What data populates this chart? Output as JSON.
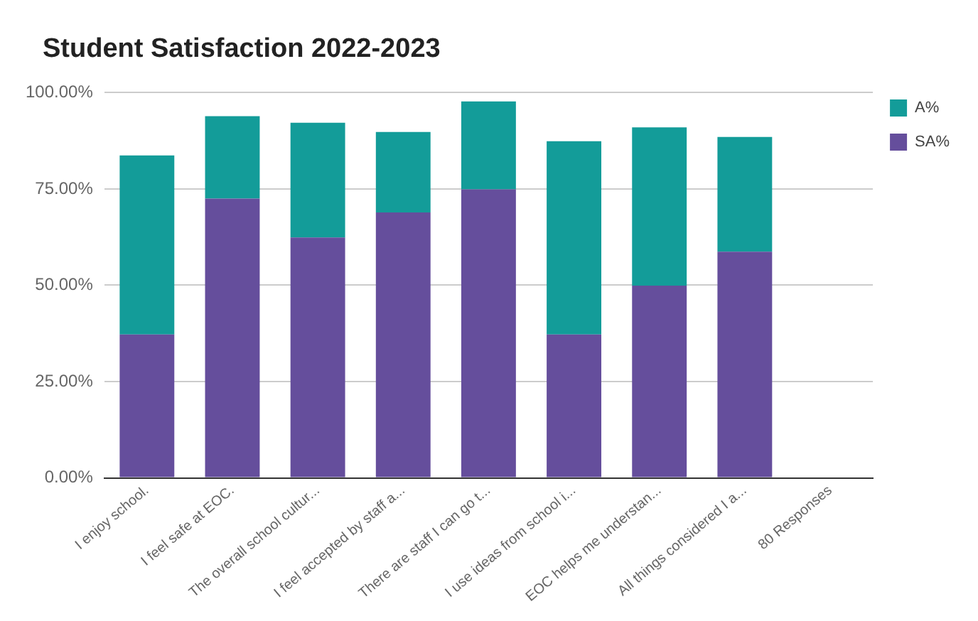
{
  "chart_data": {
    "type": "bar",
    "title": "Student Satisfaction 2022-2023",
    "categories": [
      "I enjoy school.",
      "I feel safe at EOC.",
      "The overall school cultur...",
      "I feel accepted by staff a...",
      "There are staff I can go t...",
      "I use ideas from school i...",
      "EOC helps me understan...",
      "All things considered I a...",
      "80 Responses"
    ],
    "series": [
      {
        "name": "SA%",
        "color": "#654e9c",
        "values": [
          37.2,
          72.5,
          62.4,
          68.9,
          74.9,
          37.2,
          49.9,
          58.7,
          null
        ]
      },
      {
        "name": "A%",
        "color": "#139c99",
        "values": [
          46.5,
          21.4,
          29.8,
          20.9,
          22.8,
          50.2,
          41.1,
          29.8,
          null
        ]
      }
    ],
    "stacked": true,
    "ylim": [
      0,
      100
    ],
    "yticks": [
      {
        "value": 0,
        "label": "0.00%"
      },
      {
        "value": 25,
        "label": "25.00%"
      },
      {
        "value": 50,
        "label": "50.00%"
      },
      {
        "value": 75,
        "label": "75.00%"
      },
      {
        "value": 100,
        "label": "100.00%"
      }
    ],
    "grid": "y",
    "legend": "top right"
  }
}
